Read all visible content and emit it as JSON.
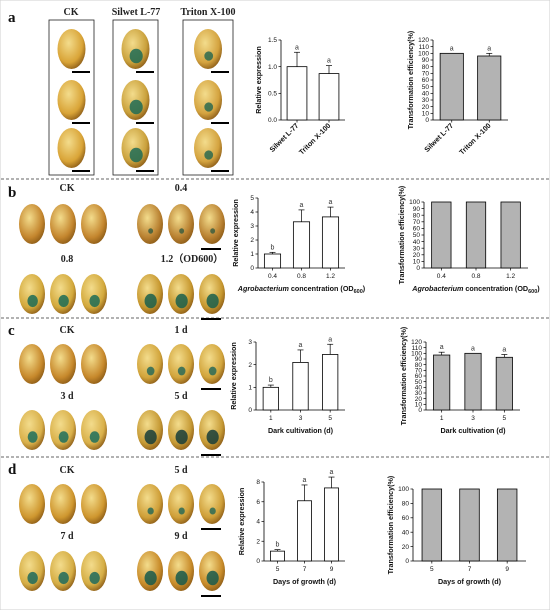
{
  "figure": {
    "panel_labels": [
      "a",
      "b",
      "c",
      "d"
    ],
    "panels": [
      {
        "label": "a",
        "photo_headers": [
          "CK",
          "Silwet L-77",
          "Triton X-100"
        ],
        "seed_tints": [
          {
            "base": "#d9a437",
            "stain": "#d9a437",
            "amount": 0
          },
          {
            "base": "#caa13c",
            "stain": "#1f6b55",
            "amount": 1
          },
          {
            "base": "#d4a33f",
            "stain": "#2d6a4f",
            "amount": 0.55
          }
        ]
      },
      {
        "label": "b",
        "photo_headers": [
          "CK",
          "0.4",
          "0.8",
          "1.2（OD600）"
        ],
        "seed_tints": [
          {
            "base": "#c4862e",
            "stain": "#c4862e",
            "amount": 0
          },
          {
            "base": "#b98131",
            "stain": "#3d5d3e",
            "amount": 0.2
          },
          {
            "base": "#d3a93c",
            "stain": "#1d6c56",
            "amount": 0.8
          },
          {
            "base": "#c7982f",
            "stain": "#1a5f4c",
            "amount": 1
          }
        ]
      },
      {
        "label": "c",
        "photo_headers": [
          "CK",
          "1 d",
          "3 d",
          "5 d"
        ],
        "seed_tints": [
          {
            "base": "#c7892c",
            "stain": "#c7892c",
            "amount": 0
          },
          {
            "base": "#d2a53c",
            "stain": "#2a6a57",
            "amount": 0.5
          },
          {
            "base": "#d9b04a",
            "stain": "#1d6e5c",
            "amount": 0.75
          },
          {
            "base": "#c69a35",
            "stain": "#183d3a",
            "amount": 1
          }
        ]
      },
      {
        "label": "d",
        "photo_headers": [
          "CK",
          "5 d",
          "7 d",
          "9 d"
        ],
        "seed_tints": [
          {
            "base": "#cf972f",
            "stain": "#cf972f",
            "amount": 0
          },
          {
            "base": "#cf9f38",
            "stain": "#2b6a55",
            "amount": 0.35
          },
          {
            "base": "#d5ad44",
            "stain": "#1e6a5c",
            "amount": 0.8
          },
          {
            "base": "#c98c2a",
            "stain": "#16594c",
            "amount": 1
          }
        ]
      }
    ]
  },
  "chart_data": [
    {
      "id": "a-expression",
      "type": "bar",
      "categories": [
        "Silwet L-77",
        "Triton X-100"
      ],
      "values": [
        1.0,
        0.87
      ],
      "errors": [
        0.27,
        0.15
      ],
      "significance": [
        "a",
        "a"
      ],
      "ylabel": "Relative expression",
      "xlabel": "",
      "ylim": [
        0,
        1.5
      ],
      "yticks": [
        0.0,
        0.5,
        1.0,
        1.5
      ],
      "tick_labels": [
        "0.0",
        "0.5",
        "1.0",
        "1.5"
      ],
      "bar_fill": "#ffffff",
      "grid": false
    },
    {
      "id": "a-efficiency",
      "type": "bar",
      "categories": [
        "Silwet L-77",
        "Triton X-100"
      ],
      "values": [
        100,
        96
      ],
      "errors": [
        0,
        4
      ],
      "significance": [
        "a",
        "a"
      ],
      "ylabel": "Transformation efficiency(%)",
      "xlabel": "",
      "ylim": [
        0,
        120
      ],
      "yticks": [
        0,
        10,
        20,
        30,
        40,
        50,
        60,
        70,
        80,
        90,
        100,
        110,
        120
      ],
      "tick_labels": [
        "0",
        "10",
        "20",
        "30",
        "40",
        "50",
        "60",
        "70",
        "80",
        "90",
        "100",
        "110",
        "120"
      ],
      "bar_fill": "#b3b3b3",
      "grid": false
    },
    {
      "id": "b-expression",
      "type": "bar",
      "categories": [
        "0.4",
        "0.8",
        "1.2"
      ],
      "values": [
        1.0,
        3.3,
        3.65
      ],
      "errors": [
        0.12,
        0.85,
        0.7
      ],
      "significance": [
        "b",
        "a",
        "a"
      ],
      "ylabel": "Relative expression",
      "xlabel": "Agrobacterium concentration (OD600)",
      "ylim": [
        0,
        5
      ],
      "yticks": [
        0,
        1,
        2,
        3,
        4,
        5
      ],
      "tick_labels": [
        "0",
        "1",
        "2",
        "3",
        "4",
        "5"
      ],
      "bar_fill": "#ffffff",
      "grid": false
    },
    {
      "id": "b-efficiency",
      "type": "bar",
      "categories": [
        "0.4",
        "0.8",
        "1.2"
      ],
      "values": [
        100,
        100,
        100
      ],
      "errors": [
        0,
        0,
        0
      ],
      "significance": [
        "",
        "",
        ""
      ],
      "ylabel": "Transformation efficiency(%)",
      "xlabel": "Agrobacterium concentration (OD600)",
      "ylim": [
        0,
        100
      ],
      "yticks": [
        0,
        10,
        20,
        30,
        40,
        50,
        60,
        70,
        80,
        90,
        100
      ],
      "tick_labels": [
        "0",
        "10",
        "20",
        "30",
        "40",
        "50",
        "60",
        "70",
        "80",
        "90",
        "100"
      ],
      "bar_fill": "#b3b3b3",
      "grid": false
    },
    {
      "id": "c-expression",
      "type": "bar",
      "categories": [
        "1",
        "3",
        "5"
      ],
      "values": [
        1.0,
        2.1,
        2.45
      ],
      "errors": [
        0.1,
        0.55,
        0.45
      ],
      "significance": [
        "b",
        "a",
        "a"
      ],
      "ylabel": "Relative expression",
      "xlabel": "Dark cultivation (d)",
      "ylim": [
        0,
        3
      ],
      "yticks": [
        0,
        1,
        2,
        3
      ],
      "tick_labels": [
        "0",
        "1",
        "2",
        "3"
      ],
      "bar_fill": "#ffffff",
      "grid": false
    },
    {
      "id": "c-efficiency",
      "type": "bar",
      "categories": [
        "1",
        "3",
        "5"
      ],
      "values": [
        97,
        100,
        93
      ],
      "errors": [
        5,
        0,
        5
      ],
      "significance": [
        "a",
        "a",
        "a"
      ],
      "ylabel": "Transformation efficiency(%)",
      "xlabel": "Dark cultivation (d)",
      "ylim": [
        0,
        120
      ],
      "yticks": [
        0,
        10,
        20,
        30,
        40,
        50,
        60,
        70,
        80,
        90,
        100,
        110,
        120
      ],
      "tick_labels": [
        "0",
        "10",
        "20",
        "30",
        "40",
        "50",
        "60",
        "70",
        "80",
        "90",
        "100",
        "110",
        "120"
      ],
      "bar_fill": "#b3b3b3",
      "grid": false
    },
    {
      "id": "d-expression",
      "type": "bar",
      "categories": [
        "5",
        "7",
        "9"
      ],
      "values": [
        1.0,
        6.1,
        7.4
      ],
      "errors": [
        0.15,
        1.6,
        1.1
      ],
      "significance": [
        "b",
        "a",
        "a"
      ],
      "ylabel": "Relative expression",
      "xlabel": "Days of growth (d)",
      "ylim": [
        0,
        8
      ],
      "yticks": [
        0,
        2,
        4,
        6,
        8
      ],
      "tick_labels": [
        "0",
        "2",
        "4",
        "6",
        "8"
      ],
      "bar_fill": "#ffffff",
      "grid": false
    },
    {
      "id": "d-efficiency",
      "type": "bar",
      "categories": [
        "5",
        "7",
        "9"
      ],
      "values": [
        100,
        100,
        100
      ],
      "errors": [
        0,
        0,
        0
      ],
      "significance": [
        "",
        "",
        ""
      ],
      "ylabel": "Transformation efficiency(%)",
      "xlabel": "Days of growth (d)",
      "ylim": [
        0,
        100
      ],
      "yticks": [
        0,
        20,
        40,
        60,
        80,
        100
      ],
      "tick_labels": [
        "0",
        "20",
        "40",
        "60",
        "80",
        "100"
      ],
      "bar_fill": "#b3b3b3",
      "grid": false
    }
  ]
}
